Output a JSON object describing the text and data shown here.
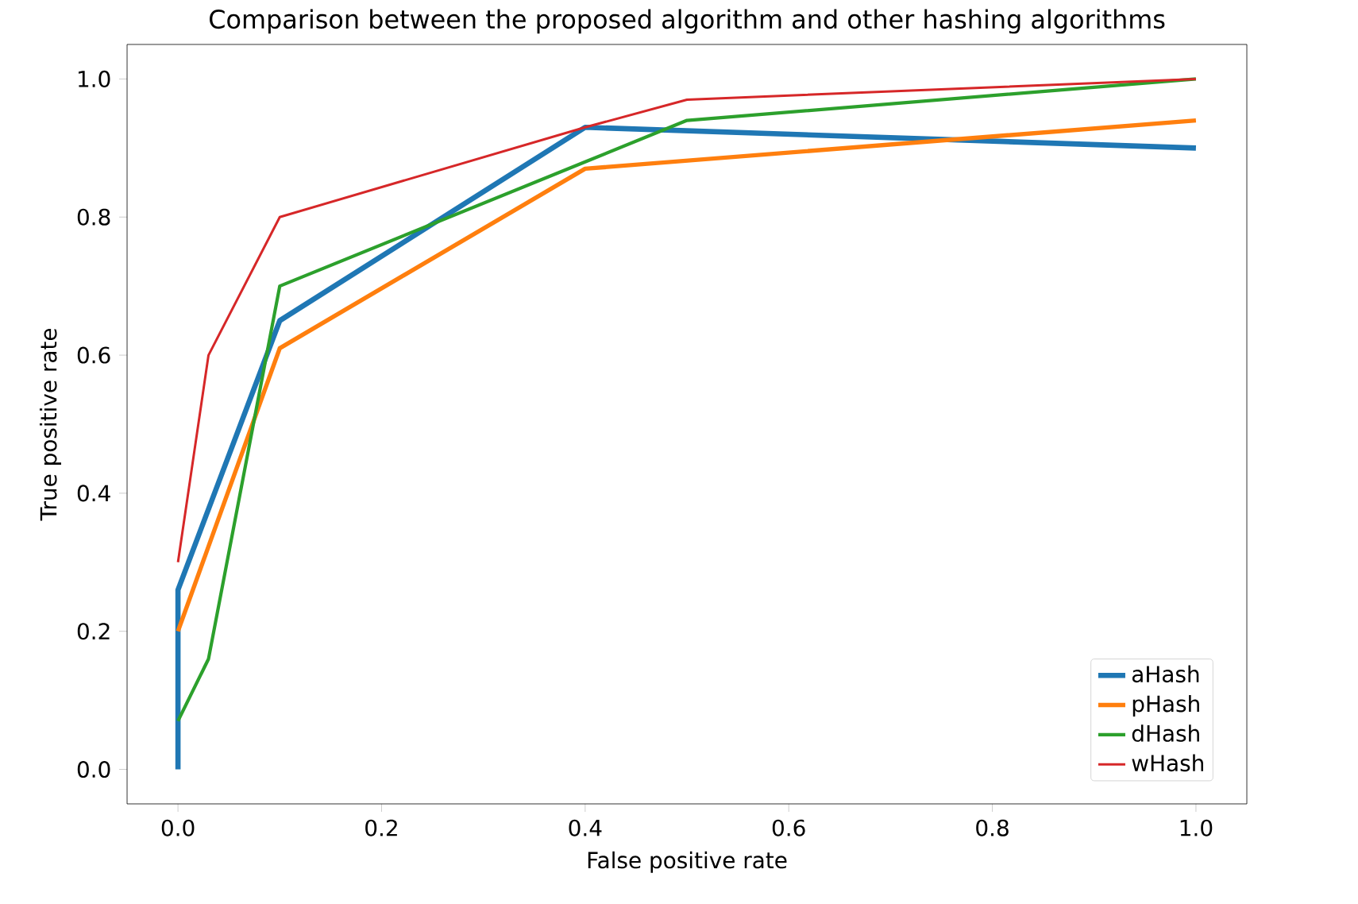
{
  "chart_data": {
    "type": "line",
    "title": "Comparison between the proposed algorithm and other hashing algorithms",
    "xlabel": "False positive rate",
    "ylabel": "True positive rate",
    "xlim": [
      -0.05,
      1.05
    ],
    "ylim": [
      -0.05,
      1.05
    ],
    "xticks": [
      {
        "value": 0,
        "label": "0.0"
      },
      {
        "value": 0.2,
        "label": "0.2"
      },
      {
        "value": 0.4,
        "label": "0.4"
      },
      {
        "value": 0.6,
        "label": "0.6"
      },
      {
        "value": 0.8,
        "label": "0.8"
      },
      {
        "value": 1,
        "label": "1.0"
      }
    ],
    "yticks": [
      {
        "value": 0,
        "label": "0.0"
      },
      {
        "value": 0.2,
        "label": "0.2"
      },
      {
        "value": 0.4,
        "label": "0.4"
      },
      {
        "value": 0.6,
        "label": "0.6"
      },
      {
        "value": 0.8,
        "label": "0.8"
      },
      {
        "value": 1,
        "label": "1.0"
      }
    ],
    "legend": "bottom right",
    "grid": false,
    "marker": "none",
    "line_style": "solid",
    "series": [
      {
        "name": "aHash",
        "color": "#1f77b4",
        "x": [
          0,
          0,
          0.1,
          0.4,
          1.0
        ],
        "values": [
          0,
          0.26,
          0.65,
          0.93,
          0.9
        ]
      },
      {
        "name": "pHash",
        "color": "#ff7f0e",
        "x": [
          0,
          0.1,
          0.4,
          1.0
        ],
        "values": [
          0.2,
          0.61,
          0.87,
          0.94
        ]
      },
      {
        "name": "dHash",
        "color": "#2ca02c",
        "x": [
          0,
          0.03,
          0.1,
          0.4,
          0.5,
          1.0
        ],
        "values": [
          0.07,
          0.16,
          0.7,
          0.88,
          0.94,
          1.0
        ]
      },
      {
        "name": "wHash",
        "color": "#d62728",
        "x": [
          0,
          0.03,
          0.1,
          0.4,
          0.5,
          1.0
        ],
        "values": [
          0.3,
          0.6,
          0.8,
          0.93,
          0.97,
          1.0
        ]
      }
    ]
  }
}
